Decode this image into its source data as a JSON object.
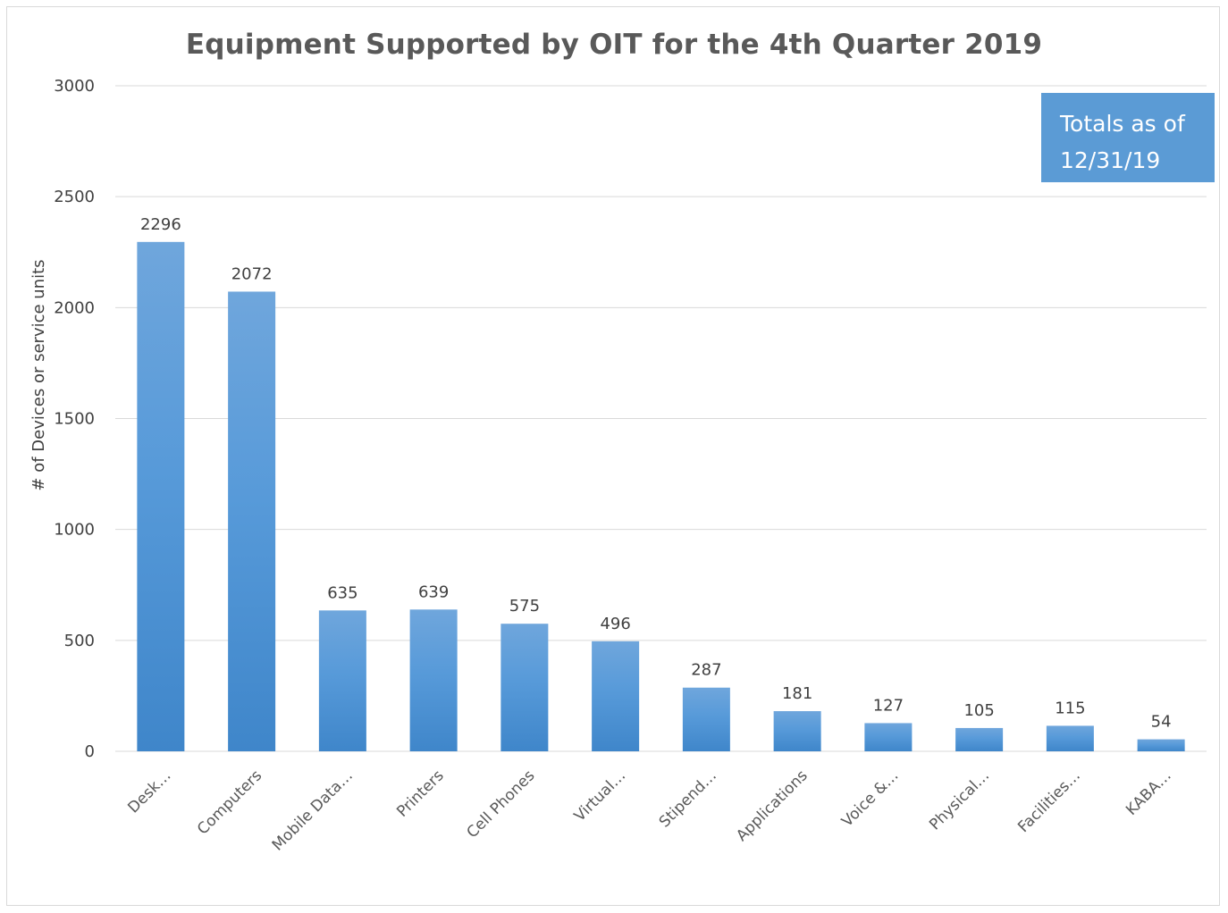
{
  "annotation": {
    "line1": "Totals as of",
    "line2": "12/31/19"
  },
  "colors": {
    "bar_top": "#6fa6dc",
    "bar_bottom": "#3f86ca",
    "annotation_bg": "#5b9bd5",
    "gridline": "#d9d9d9",
    "title": "#595959"
  },
  "chart_data": {
    "type": "bar",
    "title": "Equipment Supported by OIT for the 4th Quarter 2019",
    "xlabel": "",
    "ylabel": "# of Devices or service units",
    "ylim": [
      0,
      3000
    ],
    "yticks": [
      0,
      500,
      1000,
      1500,
      2000,
      2500,
      3000
    ],
    "grid": true,
    "legend": "none",
    "categories": [
      "Desk…",
      "Computers",
      "Mobile Data…",
      "Printers",
      "Cell Phones",
      "Virtual…",
      "Stipend…",
      "Applications",
      "Voice &…",
      "Physical…",
      "Facilities…",
      "KABA…"
    ],
    "values": [
      2296,
      2072,
      635,
      639,
      575,
      496,
      287,
      181,
      127,
      105,
      115,
      54
    ]
  }
}
